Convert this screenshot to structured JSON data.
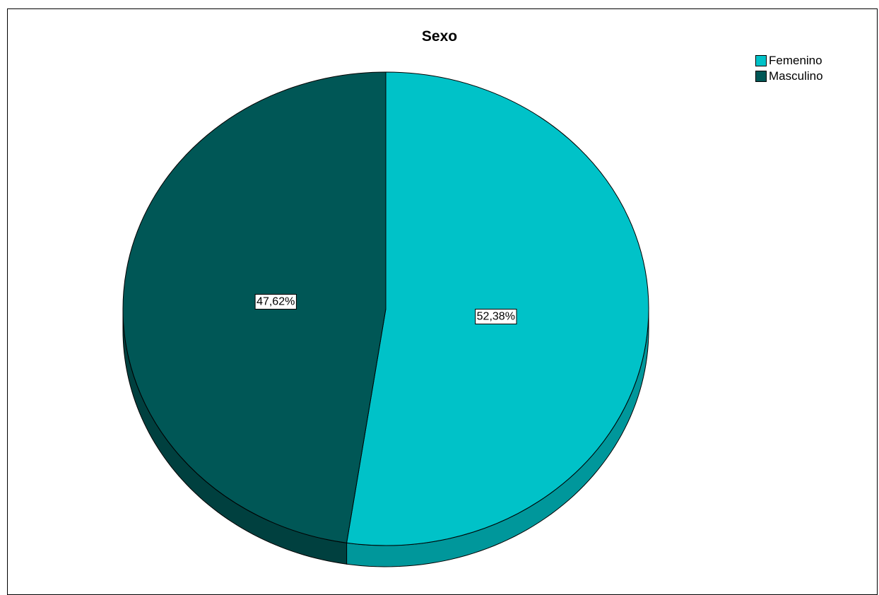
{
  "chart_data": {
    "type": "pie",
    "title": "Sexo",
    "categories": [
      "Femenino",
      "Masculino"
    ],
    "values": [
      52.38,
      47.62
    ],
    "data_labels": [
      "52,38%",
      "47,62%"
    ],
    "colors": [
      "#00C2C8",
      "#005756"
    ],
    "side_colors": [
      "#00979B",
      "#00403F"
    ],
    "legend_position": "top-right",
    "style": "3d-tilted"
  }
}
